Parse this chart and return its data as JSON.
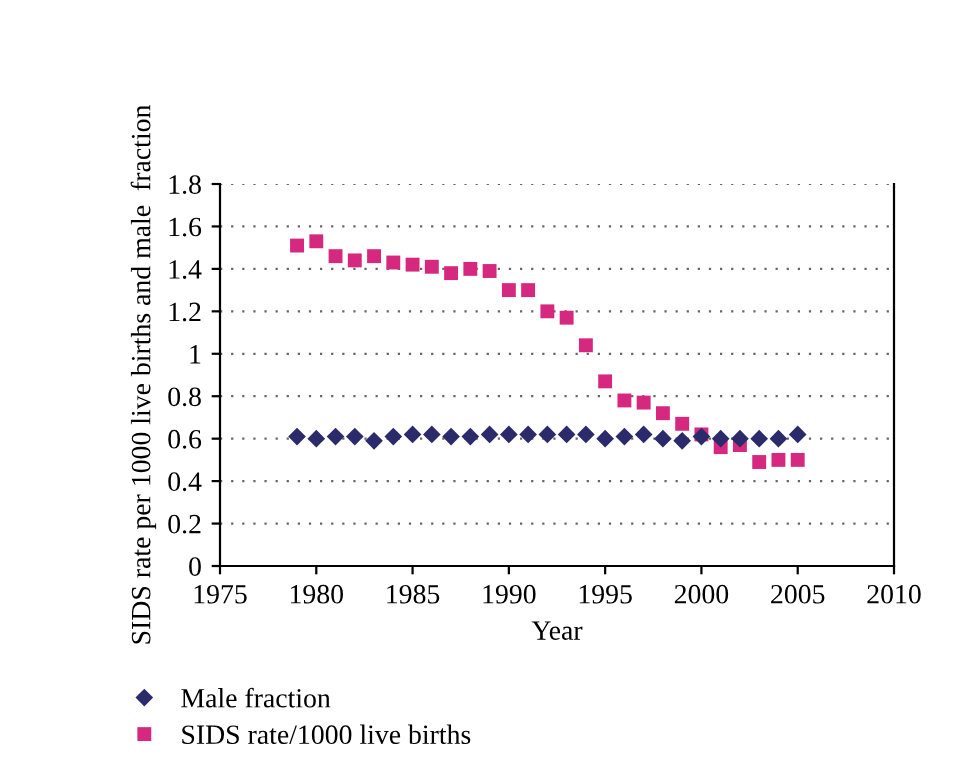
{
  "chart_data": {
    "type": "scatter",
    "xlabel": "Year",
    "ylabel": "SIDS rate per 1000 live births and male  fraction",
    "x": [
      1979,
      1980,
      1981,
      1982,
      1983,
      1984,
      1985,
      1986,
      1987,
      1988,
      1989,
      1990,
      1991,
      1992,
      1993,
      1994,
      1995,
      1996,
      1997,
      1998,
      1999,
      2000,
      2001,
      2002,
      2003,
      2004,
      2005
    ],
    "series": [
      {
        "name": "Male fraction",
        "color": "#2b2a6b",
        "marker": "diamond",
        "values": [
          0.61,
          0.6,
          0.61,
          0.61,
          0.59,
          0.61,
          0.62,
          0.62,
          0.61,
          0.61,
          0.62,
          0.62,
          0.62,
          0.62,
          0.62,
          0.62,
          0.6,
          0.61,
          0.62,
          0.6,
          0.59,
          0.61,
          0.6,
          0.6,
          0.6,
          0.6,
          0.62
        ]
      },
      {
        "name": "SIDS rate/1000 live births",
        "color": "#d6287e",
        "marker": "square",
        "values": [
          1.51,
          1.53,
          1.46,
          1.44,
          1.46,
          1.43,
          1.42,
          1.41,
          1.38,
          1.4,
          1.39,
          1.3,
          1.3,
          1.2,
          1.17,
          1.04,
          0.87,
          0.78,
          0.77,
          0.72,
          0.67,
          0.62,
          0.56,
          0.57,
          0.49,
          0.5,
          0.5
        ]
      }
    ],
    "xlim": [
      1975,
      2010
    ],
    "xticks": [
      1975,
      1980,
      1985,
      1990,
      1995,
      2000,
      2005,
      2010
    ],
    "ylim": [
      0,
      1.8
    ],
    "yticks": [
      0,
      0.2,
      0.4,
      0.6,
      0.8,
      1,
      1.2,
      1.4,
      1.6,
      1.8
    ],
    "grid": "y",
    "legend": "bottom left"
  }
}
